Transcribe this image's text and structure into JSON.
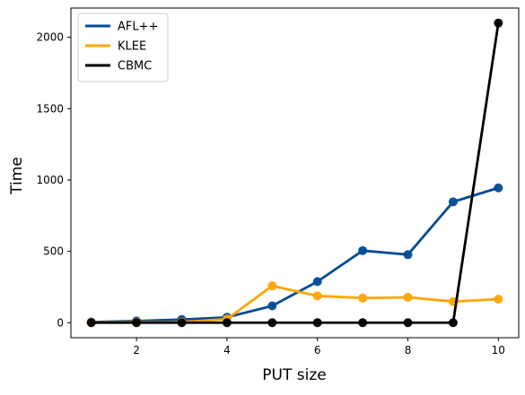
{
  "chart_data": {
    "type": "line",
    "title": "",
    "xlabel": "PUT size",
    "ylabel": "Time",
    "x": [
      1,
      2,
      3,
      4,
      5,
      6,
      7,
      8,
      9,
      10
    ],
    "xlim": [
      0.55,
      10.45
    ],
    "ylim": [
      -105,
      2205
    ],
    "xticks": [
      2,
      4,
      6,
      8,
      10
    ],
    "yticks": [
      0,
      500,
      1000,
      1500,
      2000
    ],
    "grid": false,
    "legend_position": "top-left",
    "series": [
      {
        "name": "AFL++",
        "color": "#004c97",
        "values": [
          5,
          12,
          22,
          38,
          118,
          288,
          505,
          477,
          847,
          945
        ]
      },
      {
        "name": "KLEE",
        "color": "#ffa500",
        "values": [
          2,
          3,
          4,
          25,
          258,
          188,
          173,
          178,
          148,
          165
        ]
      },
      {
        "name": "CBMC",
        "color": "#000000",
        "values": [
          0,
          0,
          0,
          0,
          0,
          0,
          0,
          0,
          0,
          2100
        ]
      }
    ]
  }
}
